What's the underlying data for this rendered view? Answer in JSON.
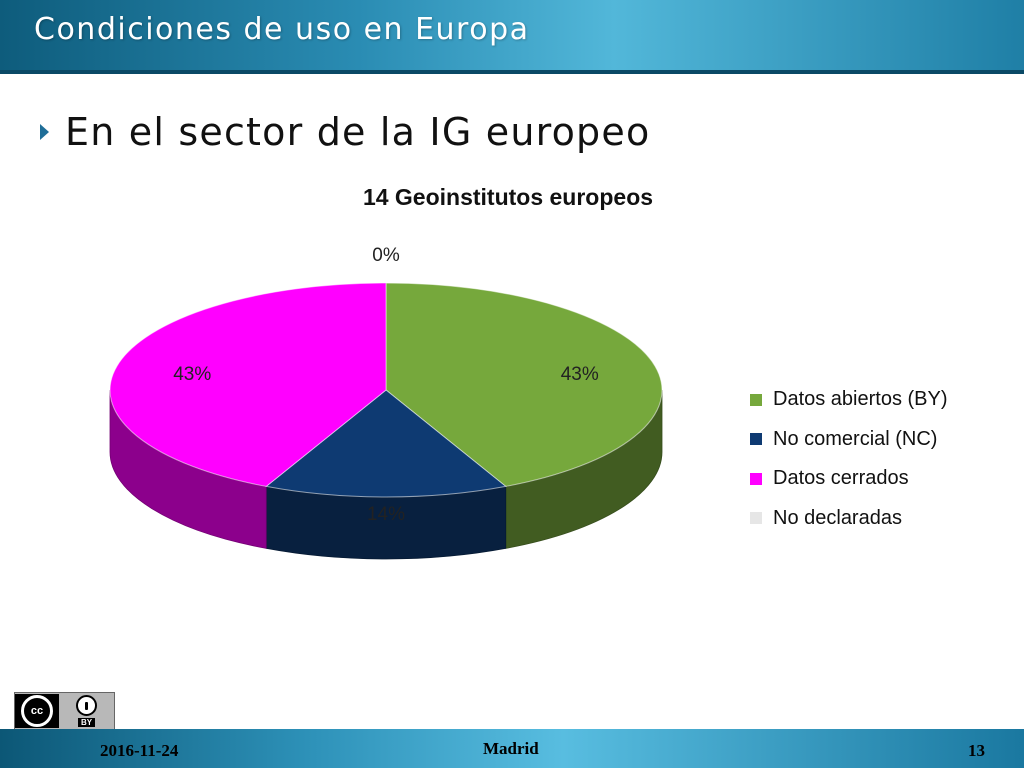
{
  "header": {
    "title": "Condiciones de uso en Europa"
  },
  "bullet": {
    "text": "En el sector de la IG europeo"
  },
  "chart_data": {
    "type": "pie",
    "title": "14 Geoinstitutos europeos",
    "categories": [
      "Datos abiertos (BY)",
      "No comercial (NC)",
      "Datos cerrados",
      "No declaradas"
    ],
    "values": [
      6,
      2,
      6,
      0
    ],
    "value_labels": [
      "43%",
      "14%",
      "43%",
      "0%"
    ],
    "colors": [
      "#76a83c",
      "#0e3a72",
      "#ff00ff",
      "#e6e6e6"
    ],
    "legend_position": "right",
    "style": "3d"
  },
  "badge": {
    "icon": "creative-commons-by-icon",
    "cc_text": "cc",
    "by_text": "BY"
  },
  "footer": {
    "date": "2016-11-24",
    "place": "Madrid",
    "page": "13"
  }
}
